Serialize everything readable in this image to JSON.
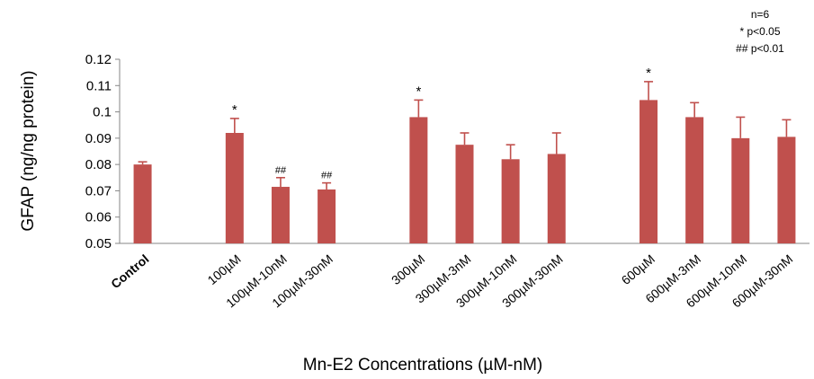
{
  "chart_data": {
    "type": "bar",
    "ylabel": "GFAP (ng/ng protein)",
    "xlabel": "Mn-E2 Concentrations (µM-nM)",
    "ylim": [
      0.05,
      0.12
    ],
    "yticks": [
      "0.05",
      "0.06",
      "0.07",
      "0.08",
      "0.09",
      "0.1",
      "0.11",
      "0.12"
    ],
    "grid": false,
    "bar_color": "#c0504d",
    "categories": [
      "Control",
      "",
      "100µM",
      "100µM-10nM",
      "100µM-30nM",
      "",
      "300µM",
      "300µM-3nM",
      "300µM-10nM",
      "300µM-30nM",
      "",
      "600µM",
      "600µM-3nM",
      "600µM-10nM",
      "600µM-30nM"
    ],
    "values": [
      0.08,
      null,
      0.092,
      0.0715,
      0.0705,
      null,
      0.098,
      0.0875,
      0.082,
      0.084,
      null,
      0.1045,
      0.098,
      0.09,
      0.0905
    ],
    "errors": [
      0.001,
      null,
      0.0055,
      0.0035,
      0.0025,
      null,
      0.0065,
      0.0045,
      0.0055,
      0.008,
      null,
      0.007,
      0.0055,
      0.008,
      0.0065
    ],
    "annotations": [
      "",
      "",
      "*",
      "##",
      "##",
      "",
      "*",
      "",
      "",
      "",
      "",
      "*",
      "",
      "",
      ""
    ],
    "legend": [
      "n=6",
      "* p<0.05",
      "## p<0.01"
    ]
  }
}
